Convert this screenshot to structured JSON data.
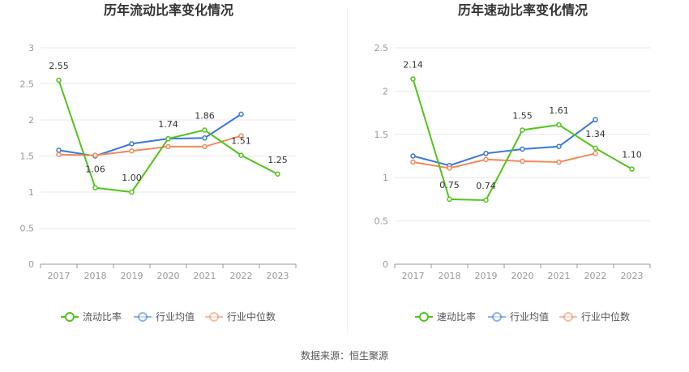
{
  "chart_data": [
    {
      "type": "line",
      "title": "历年流动比率变化情况",
      "xlabel": "",
      "ylabel": "",
      "categories": [
        "2017",
        "2018",
        "2019",
        "2020",
        "2021",
        "2022",
        "2023"
      ],
      "ylim": [
        0,
        3
      ],
      "yticks": [
        0,
        0.5,
        1,
        1.5,
        2,
        2.5,
        3
      ],
      "ytick_labels": [
        "0",
        "0.5",
        "1",
        "1.5",
        "2",
        "2.5",
        "3"
      ],
      "grid": true,
      "legend_position": "bottom",
      "series": [
        {
          "name": "流动比率",
          "color": "#52c41a",
          "values": [
            2.55,
            1.06,
            1.0,
            1.74,
            1.86,
            1.51,
            1.25
          ],
          "labels": [
            "2.55",
            "1.06",
            "1.00",
            "1.74",
            "1.86",
            "1.51",
            "1.25"
          ]
        },
        {
          "name": "行业均值",
          "color": "#3a78d8",
          "values": [
            1.58,
            1.5,
            1.67,
            1.74,
            1.75,
            2.08,
            null
          ]
        },
        {
          "name": "行业中位数",
          "color": "#f28a5b",
          "values": [
            1.52,
            1.51,
            1.57,
            1.63,
            1.63,
            1.78,
            null
          ]
        }
      ]
    },
    {
      "type": "line",
      "title": "历年速动比率变化情况",
      "xlabel": "",
      "ylabel": "",
      "categories": [
        "2017",
        "2018",
        "2019",
        "2020",
        "2021",
        "2022",
        "2023"
      ],
      "ylim": [
        0,
        2.5
      ],
      "yticks": [
        0,
        0.5,
        1,
        1.5,
        2,
        2.5
      ],
      "ytick_labels": [
        "0",
        "0.5",
        "1",
        "1.5",
        "2",
        "2.5"
      ],
      "grid": true,
      "legend_position": "bottom",
      "series": [
        {
          "name": "速动比率",
          "color": "#52c41a",
          "values": [
            2.14,
            0.75,
            0.74,
            1.55,
            1.61,
            1.34,
            1.1
          ],
          "labels": [
            "2.14",
            "0.75",
            "0.74",
            "1.55",
            "1.61",
            "1.34",
            "1.10"
          ]
        },
        {
          "name": "行业均值",
          "color": "#3a78d8",
          "values": [
            1.25,
            1.14,
            1.28,
            1.33,
            1.36,
            1.67,
            null
          ]
        },
        {
          "name": "行业中位数",
          "color": "#f28a5b",
          "values": [
            1.18,
            1.11,
            1.21,
            1.19,
            1.18,
            1.28,
            null
          ]
        }
      ]
    }
  ],
  "footer": "数据来源：恒生聚源"
}
